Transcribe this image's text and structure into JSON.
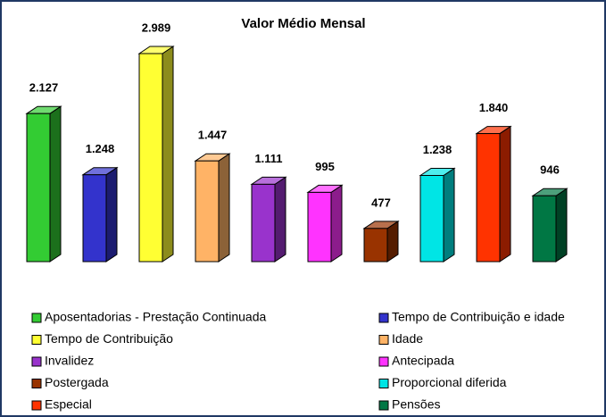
{
  "chart_data": {
    "type": "bar3d",
    "title": "Valor Médio Mensal",
    "categories": [
      "Aposentadorias - Prestação Continuada",
      "Tempo de Contribuição e idade",
      "Tempo de Contribuição",
      "Idade",
      "Invalidez",
      "Antecipada",
      "Postergada",
      "Proporcional diferida",
      "Especial",
      "Pensões"
    ],
    "values": [
      2127,
      1248,
      2989,
      1447,
      1111,
      995,
      477,
      1238,
      1840,
      946
    ],
    "value_labels": [
      "2.127",
      "1.248",
      "2.989",
      "1.447",
      "1.111",
      "995",
      "477",
      "1.238",
      "1.840",
      "946"
    ],
    "colors": [
      "#33cc33",
      "#3333cc",
      "#ffff33",
      "#ffb366",
      "#9933cc",
      "#ff33ff",
      "#993300",
      "#00e5e5",
      "#ff3300",
      "#007744"
    ],
    "legend": "bottom"
  }
}
